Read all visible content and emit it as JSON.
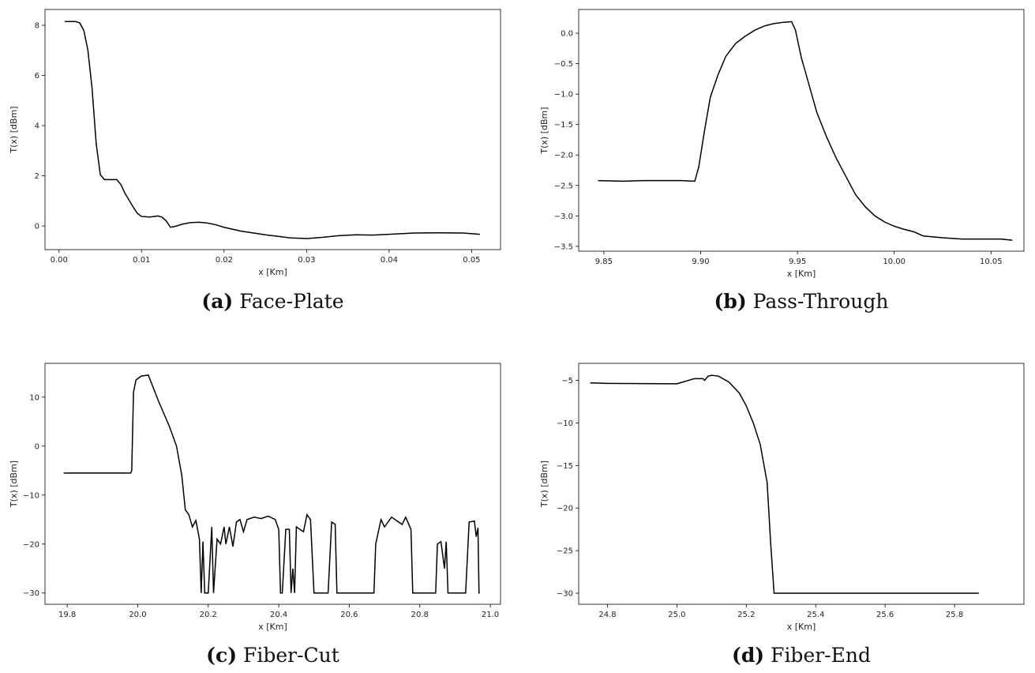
{
  "chart_data": [
    {
      "type": "line",
      "caption_label": "(a)",
      "caption": "Face-Plate",
      "xlabel": "x [Km]",
      "ylabel": "T(x) [dBm]",
      "color": "#000000",
      "x": [
        0.0007,
        0.002,
        0.0025,
        0.003,
        0.0035,
        0.004,
        0.0045,
        0.005,
        0.0055,
        0.006,
        0.007,
        0.0075,
        0.008,
        0.009,
        0.0095,
        0.01,
        0.011,
        0.012,
        0.0125,
        0.013,
        0.0135,
        0.014,
        0.015,
        0.016,
        0.017,
        0.018,
        0.019,
        0.02,
        0.022,
        0.025,
        0.028,
        0.03,
        0.032,
        0.034,
        0.036,
        0.038,
        0.04,
        0.043,
        0.046,
        0.049,
        0.051
      ],
      "y": [
        8.15,
        8.15,
        8.1,
        7.8,
        7.0,
        5.5,
        3.3,
        2.05,
        1.85,
        1.85,
        1.85,
        1.65,
        1.3,
        0.75,
        0.5,
        0.38,
        0.36,
        0.4,
        0.35,
        0.2,
        -0.05,
        -0.02,
        0.08,
        0.14,
        0.15,
        0.12,
        0.05,
        -0.05,
        -0.2,
        -0.35,
        -0.47,
        -0.5,
        -0.45,
        -0.38,
        -0.35,
        -0.36,
        -0.33,
        -0.28,
        -0.27,
        -0.28,
        -0.33
      ],
      "xlim": [
        -0.0017,
        0.0535
      ],
      "ylim": [
        -0.94,
        8.63
      ],
      "xticks": [
        {
          "value": 0,
          "label": "0.00"
        },
        {
          "value": 0.01,
          "label": "0.01"
        },
        {
          "value": 0.02,
          "label": "0.02"
        },
        {
          "value": 0.03,
          "label": "0.03"
        },
        {
          "value": 0.04,
          "label": "0.04"
        },
        {
          "value": 0.05,
          "label": "0.05"
        }
      ],
      "yticks": [
        0,
        2,
        4,
        6,
        8
      ]
    },
    {
      "type": "line",
      "caption_label": "(b)",
      "caption": "Pass-Through",
      "xlabel": "x [Km]",
      "ylabel": "T(x) [dBm]",
      "color": "#000000",
      "x": [
        9.847,
        9.86,
        9.87,
        9.88,
        9.89,
        9.897,
        9.899,
        9.902,
        9.905,
        9.909,
        9.913,
        9.918,
        9.923,
        9.928,
        9.933,
        9.938,
        9.943,
        9.947,
        9.949,
        9.952,
        9.956,
        9.96,
        9.965,
        9.97,
        9.975,
        9.98,
        9.985,
        9.99,
        9.995,
        10.0,
        10.005,
        10.01,
        10.015,
        10.025,
        10.035,
        10.045,
        10.055,
        10.061
      ],
      "y": [
        -2.42,
        -2.43,
        -2.42,
        -2.42,
        -2.42,
        -2.43,
        -2.2,
        -1.6,
        -1.05,
        -0.68,
        -0.38,
        -0.17,
        -0.05,
        0.05,
        0.12,
        0.16,
        0.18,
        0.19,
        0.05,
        -0.4,
        -0.85,
        -1.3,
        -1.7,
        -2.05,
        -2.35,
        -2.65,
        -2.85,
        -3.0,
        -3.1,
        -3.17,
        -3.22,
        -3.26,
        -3.33,
        -3.36,
        -3.38,
        -3.38,
        -3.38,
        -3.4
      ],
      "xlim": [
        9.837,
        10.067
      ],
      "ylim": [
        -3.58,
        0.39
      ],
      "xticks": [
        9.85,
        {
          "value": 9.9,
          "label": "9.90"
        },
        9.95,
        {
          "value": 10,
          "label": "10.00"
        },
        10.05
      ],
      "yticks": [
        {
          "value": 0,
          "label": "0.0"
        },
        {
          "value": -0.5,
          "label": "−0.5"
        },
        {
          "value": -1,
          "label": "−1.0"
        },
        {
          "value": -1.5,
          "label": "−1.5"
        },
        {
          "value": -2,
          "label": "−2.0"
        },
        {
          "value": -2.5,
          "label": "−2.5"
        },
        {
          "value": -3,
          "label": "−3.0"
        },
        {
          "value": -3.5,
          "label": "−3.5"
        }
      ]
    },
    {
      "type": "line",
      "caption_label": "(c)",
      "caption": "Fiber-Cut",
      "xlabel": "x [Km]",
      "ylabel": "T(x) [dBm]",
      "color": "#000000",
      "x": [
        19.79,
        19.98,
        19.983,
        19.988,
        19.995,
        20.01,
        20.03,
        20.06,
        20.09,
        20.11,
        20.125,
        20.135,
        20.145,
        20.155,
        20.165,
        20.175,
        20.18,
        20.185,
        20.19,
        20.2,
        20.21,
        20.215,
        20.225,
        20.235,
        20.245,
        20.25,
        20.26,
        20.27,
        20.28,
        20.29,
        20.3,
        20.31,
        20.33,
        20.35,
        20.37,
        20.39,
        20.4,
        20.405,
        20.41,
        20.42,
        20.43,
        20.435,
        20.44,
        20.445,
        20.45,
        20.47,
        20.48,
        20.49,
        20.5,
        20.54,
        20.55,
        20.56,
        20.565,
        20.67,
        20.675,
        20.69,
        20.7,
        20.72,
        20.75,
        20.76,
        20.775,
        20.78,
        20.845,
        20.85,
        20.86,
        20.87,
        20.875,
        20.88,
        20.93,
        20.94,
        20.955,
        20.96,
        20.965,
        20.968,
        20.97
      ],
      "y": [
        -5.5,
        -5.5,
        -5,
        11,
        13.5,
        14.3,
        14.5,
        9,
        4,
        0,
        -6,
        -13,
        -14,
        -16.5,
        -15.2,
        -19,
        -30,
        -19.5,
        -30,
        -30,
        -16.5,
        -30,
        -19,
        -20,
        -16.5,
        -20,
        -16.5,
        -20.5,
        -15.5,
        -15,
        -17.5,
        -15,
        -14.5,
        -14.8,
        -14.3,
        -15,
        -17,
        -30,
        -30,
        -17,
        -17,
        -30,
        -25,
        -30,
        -16.5,
        -17.5,
        -14,
        -15,
        -30,
        -30,
        -15.5,
        -16,
        -30,
        -30,
        -20,
        -15,
        -16.5,
        -14.5,
        -16,
        -14.5,
        -17,
        -30,
        -30,
        -20,
        -19.5,
        -25,
        -19.5,
        -30,
        -30,
        -15.5,
        -15.3,
        -18.5,
        -16.7,
        -30,
        -30
      ],
      "xlim": [
        19.737,
        21.029
      ],
      "ylim": [
        -32.3,
        16.9
      ],
      "xticks": [
        19.8,
        {
          "value": 20,
          "label": "20.0"
        },
        20.2,
        20.4,
        20.6,
        20.8,
        {
          "value": 21,
          "label": "21.0"
        }
      ],
      "yticks": [
        10,
        0,
        {
          "value": -10,
          "label": "−10"
        },
        {
          "value": -20,
          "label": "−20"
        },
        {
          "value": -30,
          "label": "−30"
        }
      ]
    },
    {
      "type": "line",
      "caption_label": "(d)",
      "caption": "Fiber-End",
      "xlabel": "x [Km]",
      "ylabel": "T(x) [dBm]",
      "color": "#000000",
      "x": [
        24.75,
        24.8,
        25.0,
        25.05,
        25.075,
        25.08,
        25.09,
        25.1,
        25.12,
        25.15,
        25.18,
        25.2,
        25.22,
        25.24,
        25.26,
        25.27,
        25.28,
        25.87
      ],
      "y": [
        -5.3,
        -5.35,
        -5.4,
        -4.8,
        -4.8,
        -5.0,
        -4.5,
        -4.4,
        -4.5,
        -5.2,
        -6.5,
        -8,
        -10,
        -12.5,
        -17,
        -24,
        -30,
        -30
      ],
      "xlim": [
        24.717,
        26.0
      ],
      "ylim": [
        -31.3,
        -3.0
      ],
      "xticks": [
        24.8,
        {
          "value": 25,
          "label": "25.0"
        },
        25.2,
        25.4,
        25.6,
        25.8
      ],
      "yticks": [
        {
          "value": -5,
          "label": "−5"
        },
        {
          "value": -10,
          "label": "−10"
        },
        {
          "value": -15,
          "label": "−15"
        },
        {
          "value": -20,
          "label": "−20"
        },
        {
          "value": -25,
          "label": "−25"
        },
        {
          "value": -30,
          "label": "−30"
        }
      ]
    }
  ]
}
